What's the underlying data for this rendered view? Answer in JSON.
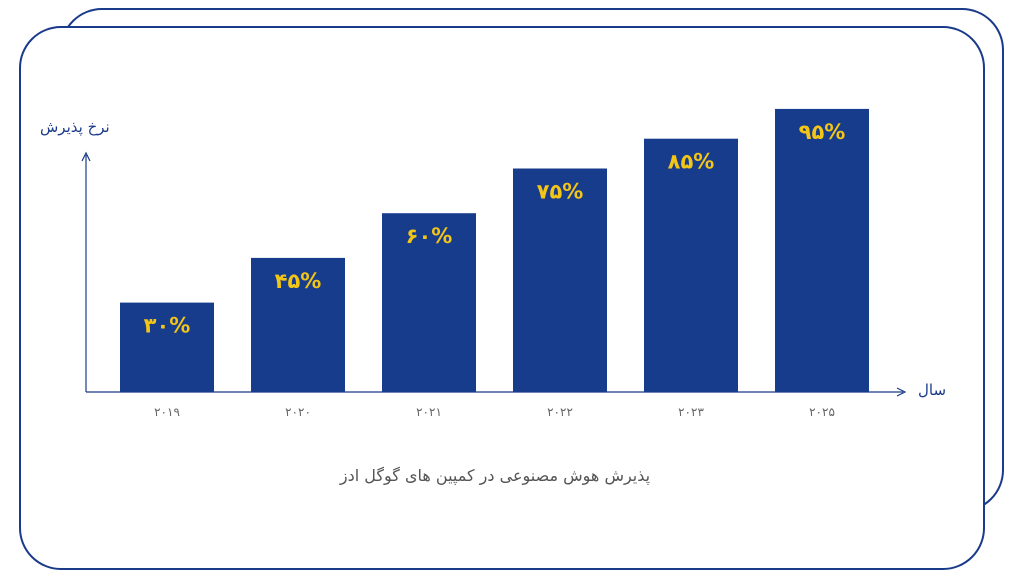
{
  "chart_data": {
    "type": "bar",
    "title": "پذیرش هوش مصنوعی در کمپین های گوگل ادز",
    "xlabel": "سال",
    "ylabel": "نرخ پذیرش",
    "categories": [
      "۲۰۱۹",
      "۲۰۲۰",
      "۲۰۲۱",
      "۲۰۲۲",
      "۲۰۲۳",
      "۲۰۲۵"
    ],
    "values": [
      30,
      45,
      60,
      75,
      85,
      95
    ],
    "value_labels": [
      "۳۰%",
      "۴۵%",
      "۶۰%",
      "۷۵%",
      "۸۵%",
      "۹۵%"
    ],
    "ylim": [
      0,
      100
    ],
    "grid": false,
    "colors": {
      "bar": "#183c8c",
      "label": "#f2c516",
      "axis": "#1a3a8a",
      "tick": "#666666"
    }
  }
}
